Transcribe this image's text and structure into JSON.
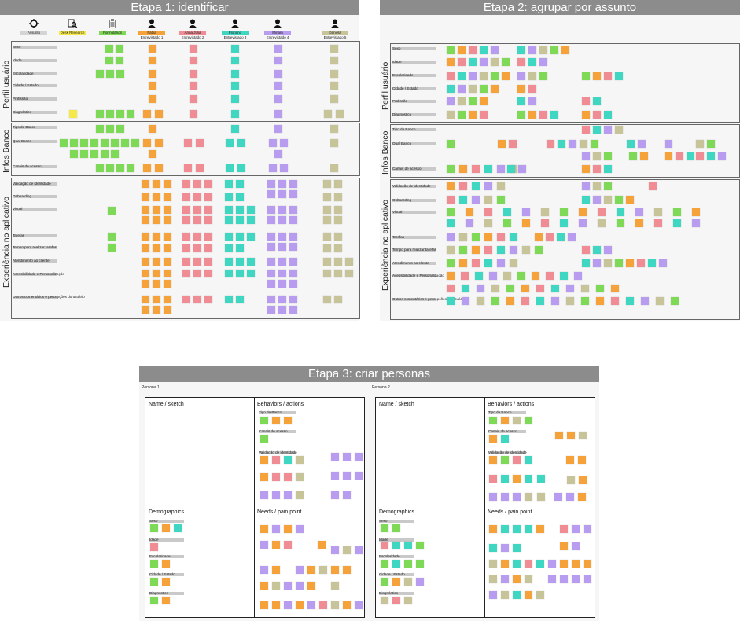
{
  "stages": [
    {
      "title": "Etapa 1: identificar"
    },
    {
      "title": "Etapa 2: agrupar por assunto"
    },
    {
      "title": "Etapa 3: criar personas"
    }
  ],
  "legend": [
    {
      "icon": "crosshair-icon",
      "label": "Assunto",
      "color": "#d4d4d4"
    },
    {
      "icon": "desk-research-icon",
      "label": "Desk Research",
      "color": "#f5e94a"
    },
    {
      "icon": "clipboard-icon",
      "label": "Formulários",
      "color": "#7ed957"
    },
    {
      "icon": "user-icon",
      "label": "Fábia",
      "sub": "Entrevistado 1",
      "color": "#f6a23a"
    },
    {
      "icon": "user-icon",
      "label": "Anna Júlia",
      "sub": "Entrevistado 2",
      "color": "#f08c94"
    },
    {
      "icon": "user-icon",
      "label": "Floriano",
      "sub": "Entrevistado 3",
      "color": "#3fd7c2"
    },
    {
      "icon": "user-icon",
      "label": "Miriam",
      "sub": "Entrevistado 4",
      "color": "#b79cf0"
    },
    {
      "icon": "user-icon",
      "label": "Daniela",
      "sub": "Entrevistado 5",
      "color": "#c8c49a"
    }
  ],
  "sections": [
    {
      "title": "Perfil usuário",
      "rows": [
        "Sexo",
        "Idade",
        "Escolaridade",
        "Cidade / Estado",
        "Profissão",
        "Diagnóstico"
      ]
    },
    {
      "title": "Infos Banco",
      "rows": [
        "Tipo de Banco",
        "Qual Banco",
        "Canais de acesso"
      ]
    },
    {
      "title": "Experiência no aplicativo",
      "rows": [
        "Validação de identidade",
        "Onboarding",
        "Visual",
        "Tarefas",
        "Tempo para realizar tarefas",
        "Atendimento ao cliente",
        "Acessibilidade e Personalização",
        "Outros comentários e percepções do usuário"
      ]
    }
  ],
  "personas": [
    {
      "label": "Persona 1",
      "quadrants": [
        "Name  / sketch",
        "Behaviors / actions",
        "Demographics",
        "Needs / pain point"
      ],
      "behavior_rows": [
        "Tipo de Banco",
        "Canais de acesso",
        "Validação de identidade"
      ],
      "demo_rows": [
        "Sexo",
        "Idade",
        "Escolaridade",
        "Cidade / Estado",
        "Diagnóstico"
      ]
    },
    {
      "label": "Persona 2",
      "quadrants": [
        "Name  / sketch",
        "Behaviors / actions",
        "Demographics",
        "Needs / pain point"
      ],
      "behavior_rows": [
        "Tipo de Banco",
        "Canais de acesso",
        "Validação de identidade"
      ],
      "demo_rows": [
        "Sexo",
        "Idade",
        "Escolaridade",
        "Cidade / Estado",
        "Diagnóstico"
      ]
    }
  ],
  "colors": {
    "banner": "#8c8c8c",
    "desk": "#f5e94a",
    "form": "#7ed957",
    "e1": "#f6a23a",
    "e2": "#f08c94",
    "e3": "#3fd7c2",
    "e4": "#b79cf0",
    "e5": "#c8c49a"
  }
}
